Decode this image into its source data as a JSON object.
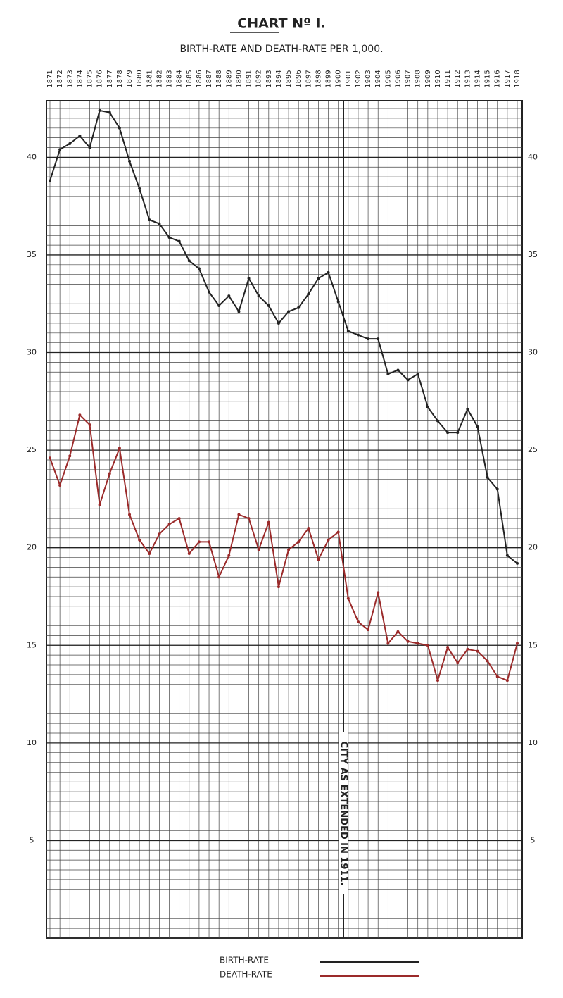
{
  "chart_data": {
    "type": "line",
    "title": "CHART Nº I.",
    "subtitle": "BIRTH-RATE AND DEATH-RATE PER 1,000.",
    "annotation": "CITY AS EXTENDED IN 1911.",
    "categories": [
      "1871",
      "1872",
      "1873",
      "1874",
      "1875",
      "1876",
      "1877",
      "1878",
      "1879",
      "1880",
      "1881",
      "1882",
      "1883",
      "1884",
      "1885",
      "1886",
      "1887",
      "1888",
      "1889",
      "1890",
      "1891",
      "1892",
      "1893",
      "1894",
      "1895",
      "1896",
      "1897",
      "1898",
      "1899",
      "1900",
      "1901",
      "1902",
      "1903",
      "1904",
      "1905",
      "1906",
      "1907",
      "1908",
      "1909",
      "1910",
      "1911",
      "1912",
      "1913",
      "1914",
      "1915",
      "1916",
      "1917",
      "1918"
    ],
    "series": [
      {
        "name": "BIRTH-RATE",
        "color": "#222222",
        "values": [
          38.8,
          40.4,
          40.7,
          41.1,
          40.5,
          42.4,
          42.3,
          41.5,
          39.8,
          38.4,
          36.8,
          36.6,
          35.9,
          35.7,
          34.7,
          34.3,
          33.1,
          32.4,
          32.9,
          32.1,
          33.8,
          32.9,
          32.4,
          31.5,
          32.1,
          32.3,
          33.0,
          33.8,
          34.1,
          32.6,
          31.1,
          30.9,
          30.7,
          30.7,
          28.9,
          29.1,
          28.6,
          28.9,
          27.2,
          26.5,
          25.9,
          25.9,
          27.1,
          26.2,
          23.6,
          23.0,
          19.6,
          19.2
        ]
      },
      {
        "name": "DEATH-RATE",
        "color": "#9b2a2a",
        "values": [
          24.6,
          23.2,
          24.7,
          26.8,
          26.3,
          22.2,
          23.8,
          25.1,
          21.7,
          20.4,
          19.7,
          20.7,
          21.2,
          21.5,
          19.7,
          20.3,
          20.3,
          18.5,
          19.6,
          21.7,
          21.5,
          19.9,
          21.3,
          18.0,
          19.9,
          20.3,
          21.0,
          19.4,
          20.4,
          20.8,
          17.4,
          16.2,
          15.8,
          17.7,
          15.1,
          15.7,
          15.2,
          15.1,
          15.0,
          13.2,
          14.9,
          14.1,
          14.8,
          14.7,
          14.2,
          13.4,
          13.2,
          15.1
        ]
      }
    ],
    "ylim": [
      0,
      42.9
    ],
    "yticks": [
      5,
      10,
      15,
      20,
      25,
      30,
      35,
      40
    ],
    "grid": true
  }
}
